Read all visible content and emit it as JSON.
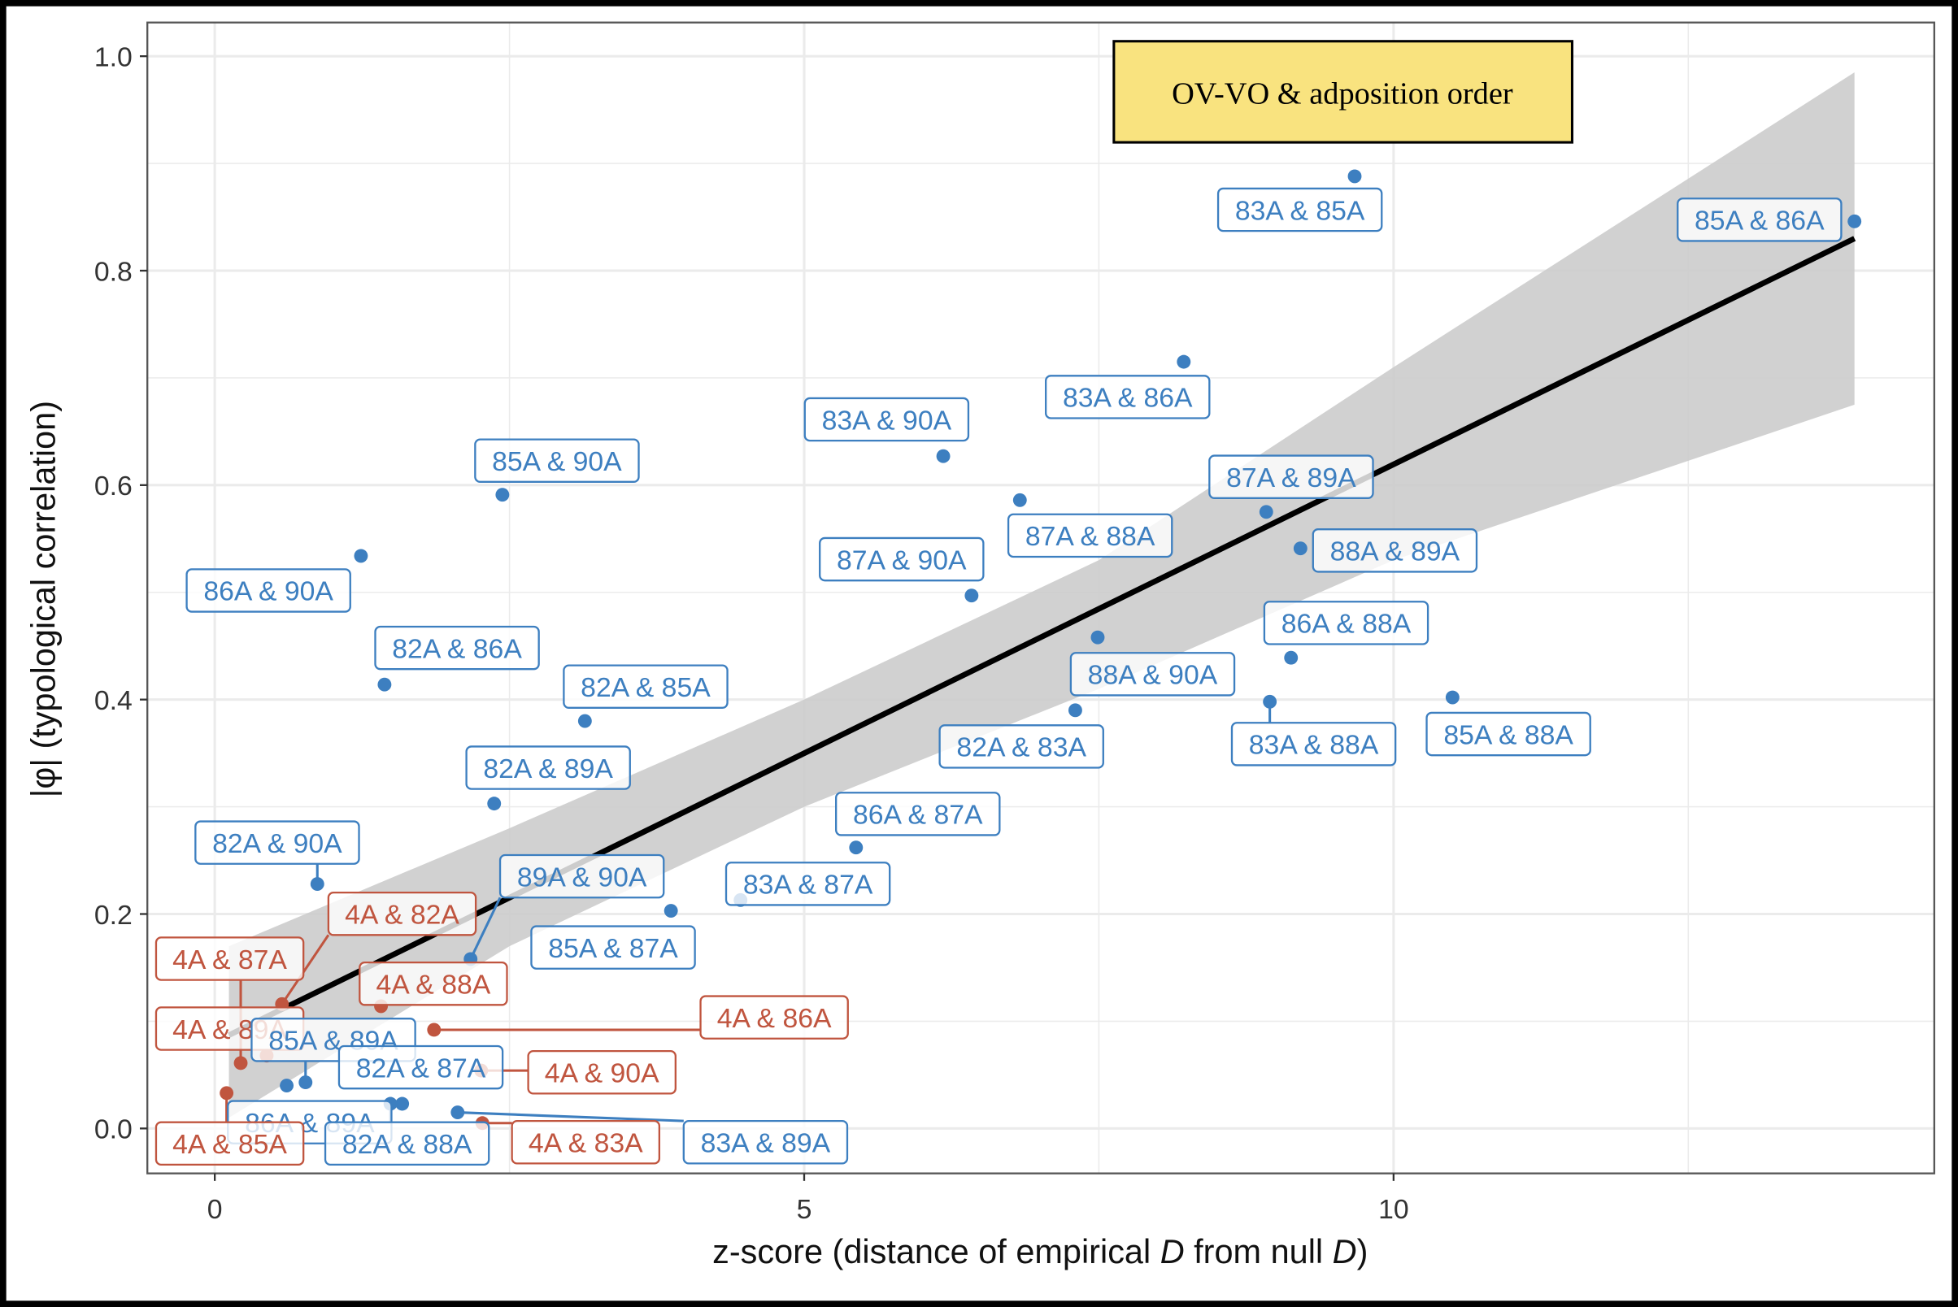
{
  "chart_data": {
    "type": "scatter",
    "title": "OV-VO & adposition order",
    "xlabel_parts": [
      "z-score (distance of empirical ",
      "D",
      " from null ",
      "D",
      ")"
    ],
    "ylabel": "|φ| (typological correlation)",
    "xlim": [
      -0.6,
      14.5
    ],
    "ylim": [
      -0.04,
      1.03
    ],
    "x_ticks": [
      0,
      5,
      10
    ],
    "y_ticks": [
      0.0,
      0.2,
      0.4,
      0.6,
      0.8,
      1.0
    ],
    "y_tick_labels": [
      "0.0",
      "0.2",
      "0.4",
      "0.6",
      "0.8",
      "1.0"
    ],
    "grid": true,
    "colors": {
      "feature_pair": "#3d7fc0",
      "with_4A": "#c0553f",
      "title_box": "#f9e37f",
      "ci_band": "#cccccc",
      "fit_line": "#000000"
    },
    "fit_line": {
      "x": [
        0.12,
        13.91
      ],
      "y": [
        0.087,
        0.83
      ]
    },
    "ci_band": [
      {
        "x": 0.12,
        "lo": 0.01,
        "hi": 0.17
      },
      {
        "x": 2.5,
        "lo": 0.17,
        "hi": 0.28
      },
      {
        "x": 5.0,
        "lo": 0.3,
        "hi": 0.4
      },
      {
        "x": 7.5,
        "lo": 0.41,
        "hi": 0.53
      },
      {
        "x": 10.0,
        "lo": 0.53,
        "hi": 0.71
      },
      {
        "x": 13.91,
        "lo": 0.675,
        "hi": 0.985
      }
    ],
    "points": [
      {
        "label": "83A & 85A",
        "x": 9.67,
        "y": 0.888,
        "group": "feature_pair"
      },
      {
        "label": "85A & 86A",
        "x": 13.91,
        "y": 0.846,
        "group": "feature_pair"
      },
      {
        "label": "83A & 86A",
        "x": 8.22,
        "y": 0.715,
        "group": "feature_pair"
      },
      {
        "label": "83A & 90A",
        "x": 6.18,
        "y": 0.627,
        "group": "feature_pair"
      },
      {
        "label": "85A & 90A",
        "x": 2.44,
        "y": 0.591,
        "group": "feature_pair"
      },
      {
        "label": "87A & 89A",
        "x": 8.92,
        "y": 0.575,
        "group": "feature_pair"
      },
      {
        "label": "87A & 88A",
        "x": 6.83,
        "y": 0.586,
        "group": "feature_pair"
      },
      {
        "label": "88A & 89A",
        "x": 9.21,
        "y": 0.541,
        "group": "feature_pair"
      },
      {
        "label": "87A & 90A",
        "x": 6.42,
        "y": 0.497,
        "group": "feature_pair"
      },
      {
        "label": "86A & 90A",
        "x": 1.24,
        "y": 0.534,
        "group": "feature_pair"
      },
      {
        "label": "86A & 88A",
        "x": 9.13,
        "y": 0.439,
        "group": "feature_pair"
      },
      {
        "label": "82A & 86A",
        "x": 1.44,
        "y": 0.414,
        "group": "feature_pair"
      },
      {
        "label": "88A & 90A",
        "x": 7.49,
        "y": 0.458,
        "group": "feature_pair"
      },
      {
        "label": "82A & 85A",
        "x": 3.14,
        "y": 0.38,
        "group": "feature_pair"
      },
      {
        "label": "83A & 88A",
        "x": 8.95,
        "y": 0.398,
        "group": "feature_pair"
      },
      {
        "label": "85A & 88A",
        "x": 10.5,
        "y": 0.402,
        "group": "feature_pair"
      },
      {
        "label": "82A & 83A",
        "x": 7.3,
        "y": 0.39,
        "group": "feature_pair"
      },
      {
        "label": "82A & 89A",
        "x": 2.37,
        "y": 0.303,
        "group": "feature_pair"
      },
      {
        "label": "86A & 87A",
        "x": 5.44,
        "y": 0.262,
        "group": "feature_pair"
      },
      {
        "label": "82A & 90A",
        "x": 0.87,
        "y": 0.228,
        "group": "feature_pair"
      },
      {
        "label": "89A & 90A",
        "x": 2.17,
        "y": 0.158,
        "group": "feature_pair"
      },
      {
        "label": "83A & 87A",
        "x": 4.46,
        "y": 0.213,
        "group": "feature_pair"
      },
      {
        "label": "4A & 82A",
        "x": 0.57,
        "y": 0.116,
        "group": "with_4A"
      },
      {
        "label": "85A & 87A",
        "x": 3.87,
        "y": 0.203,
        "group": "feature_pair"
      },
      {
        "label": "4A & 87A",
        "x": 0.22,
        "y": 0.061,
        "group": "with_4A"
      },
      {
        "label": "4A & 88A",
        "x": 1.41,
        "y": 0.114,
        "group": "with_4A"
      },
      {
        "label": "4A & 86A",
        "x": 1.86,
        "y": 0.092,
        "group": "with_4A"
      },
      {
        "label": "4A & 89A",
        "x": 0.44,
        "y": 0.068,
        "group": "with_4A"
      },
      {
        "label": "85A & 89A",
        "x": 0.77,
        "y": 0.043,
        "group": "feature_pair"
      },
      {
        "label": "82A & 87A",
        "x": 1.59,
        "y": 0.023,
        "group": "feature_pair"
      },
      {
        "label": "4A & 90A",
        "x": 2.26,
        "y": 0.054,
        "group": "with_4A"
      },
      {
        "label": "86A & 89A",
        "x": 0.61,
        "y": 0.04,
        "group": "feature_pair"
      },
      {
        "label": "4A & 85A",
        "x": 0.1,
        "y": 0.033,
        "group": "with_4A"
      },
      {
        "label": "82A & 88A",
        "x": 1.49,
        "y": 0.023,
        "group": "feature_pair"
      },
      {
        "label": "4A & 83A",
        "x": 2.27,
        "y": 0.005,
        "group": "with_4A"
      },
      {
        "label": "83A & 89A",
        "x": 2.06,
        "y": 0.015,
        "group": "feature_pair"
      }
    ]
  }
}
